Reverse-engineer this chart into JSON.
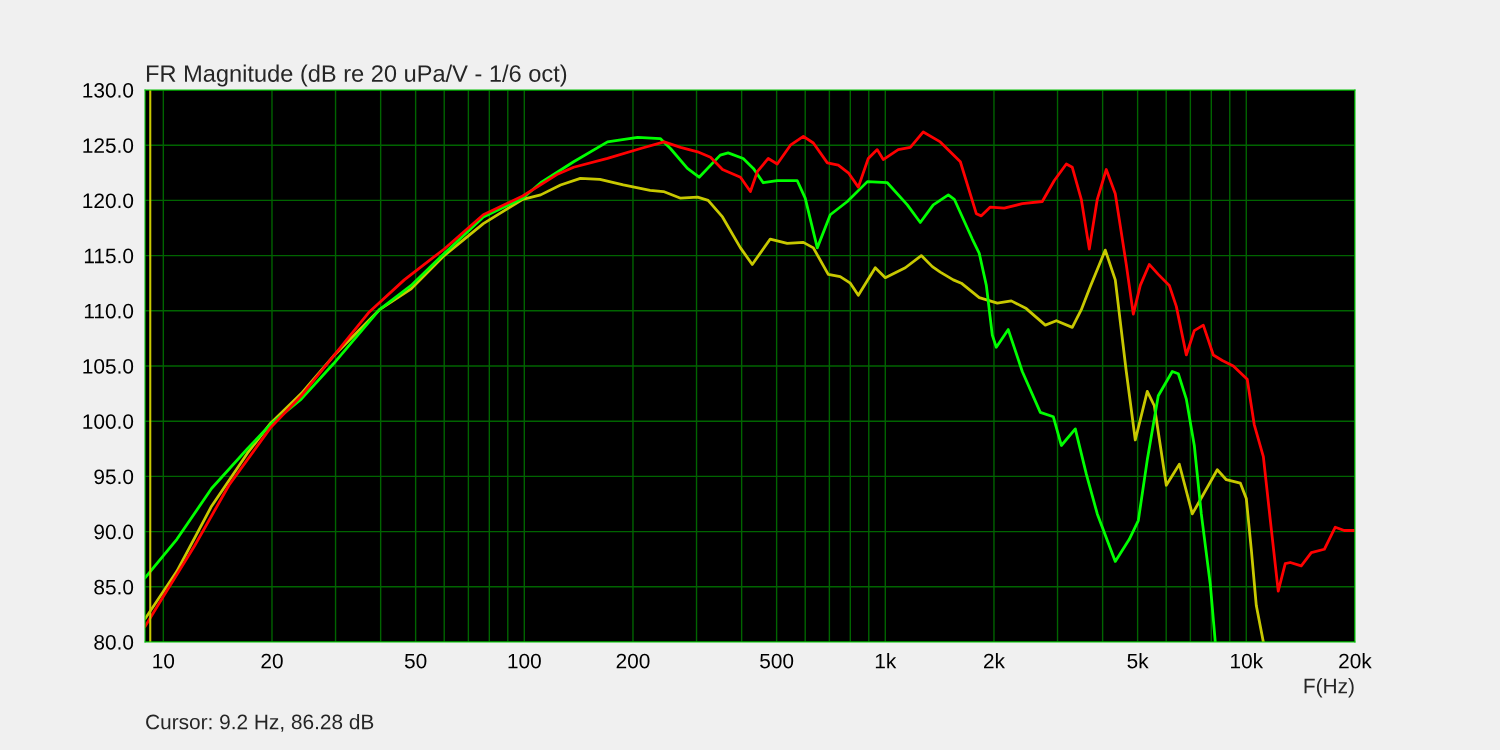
{
  "chart_data": {
    "type": "line",
    "title": "FR Magnitude (dB re 20 uPa/V - 1/6 oct)",
    "xlabel": "F(Hz)",
    "annotations": [
      "Cursor: 9.2 Hz, 86.28 dB"
    ],
    "log": "x",
    "grid": true,
    "marker": "none",
    "line_style": "solid",
    "xlim": [
      8.9,
      20000
    ],
    "ylim": [
      80,
      130
    ],
    "xticks": [
      {
        "value": 10,
        "label": "10"
      },
      {
        "value": 20,
        "label": "20"
      },
      {
        "value": 30,
        "label": null
      },
      {
        "value": 40,
        "label": null
      },
      {
        "value": 50,
        "label": "50"
      },
      {
        "value": 60,
        "label": null
      },
      {
        "value": 70,
        "label": null
      },
      {
        "value": 80,
        "label": null
      },
      {
        "value": 90,
        "label": null
      },
      {
        "value": 100,
        "label": "100"
      },
      {
        "value": 200,
        "label": "200"
      },
      {
        "value": 300,
        "label": null
      },
      {
        "value": 400,
        "label": null
      },
      {
        "value": 500,
        "label": "500"
      },
      {
        "value": 600,
        "label": null
      },
      {
        "value": 700,
        "label": null
      },
      {
        "value": 800,
        "label": null
      },
      {
        "value": 900,
        "label": null
      },
      {
        "value": 1000,
        "label": "1k"
      },
      {
        "value": 2000,
        "label": "2k"
      },
      {
        "value": 3000,
        "label": null
      },
      {
        "value": 4000,
        "label": null
      },
      {
        "value": 5000,
        "label": "5k"
      },
      {
        "value": 6000,
        "label": null
      },
      {
        "value": 7000,
        "label": null
      },
      {
        "value": 8000,
        "label": null
      },
      {
        "value": 9000,
        "label": null
      },
      {
        "value": 10000,
        "label": "10k"
      },
      {
        "value": 20000,
        "label": "20k"
      }
    ],
    "yticks": [
      {
        "value": 80,
        "label": "80.0"
      },
      {
        "value": 85,
        "label": "85.0"
      },
      {
        "value": 90,
        "label": "90.0"
      },
      {
        "value": 95,
        "label": "95.0"
      },
      {
        "value": 100,
        "label": "100.0"
      },
      {
        "value": 105,
        "label": "105.0"
      },
      {
        "value": 110,
        "label": "110.0"
      },
      {
        "value": 115,
        "label": "115.0"
      },
      {
        "value": 120,
        "label": "120.0"
      },
      {
        "value": 125,
        "label": "125.0"
      },
      {
        "value": 130,
        "label": "130.0"
      }
    ],
    "ref_lines": [
      {
        "axis": "x",
        "value": 9.2,
        "color": "#c8c800"
      }
    ],
    "series": [
      {
        "color": "#c8c800",
        "x": [
          8.9,
          10.9,
          13.6,
          17.1,
          19.8,
          24.1,
          29.6,
          39.7,
          48.6,
          60,
          77,
          99,
          111,
          126,
          143,
          162,
          188,
          223,
          243,
          271,
          302,
          323,
          354,
          397,
          428,
          480,
          535,
          593,
          632,
          695,
          750,
          800,
          842,
          938,
          1000,
          1136,
          1258,
          1350,
          1420,
          1543,
          1624,
          1821,
          2043,
          2234,
          2458,
          2775,
          2977,
          3296,
          3491,
          3698,
          4068,
          4336,
          4651,
          4926,
          5318,
          5562,
          6004,
          6524,
          7087,
          8311,
          8803,
          9625,
          10000,
          10325,
          10660,
          11150
        ],
        "values": [
          82.1,
          86.4,
          92.3,
          97.1,
          99.8,
          102.5,
          105.9,
          110.1,
          112.0,
          115.0,
          117.9,
          120.1,
          120.5,
          121.4,
          122.0,
          121.9,
          121.4,
          120.9,
          120.8,
          120.2,
          120.3,
          120.0,
          118.5,
          115.7,
          114.2,
          116.5,
          116.1,
          116.2,
          115.7,
          113.3,
          113.1,
          112.5,
          111.4,
          113.9,
          113.0,
          113.9,
          115.0,
          114.0,
          113.5,
          112.8,
          112.5,
          111.2,
          110.7,
          110.9,
          110.2,
          108.7,
          109.1,
          108.5,
          110.1,
          112.2,
          115.5,
          112.8,
          104.5,
          98.3,
          102.7,
          101.4,
          94.2,
          96.1,
          91.6,
          95.6,
          94.7,
          94.4,
          93.0,
          88.4,
          83.3,
          80.0
        ]
      },
      {
        "color": "#00ff00",
        "x": [
          8.9,
          10.9,
          13.6,
          17.1,
          19.8,
          24.1,
          29.6,
          39.7,
          48.6,
          60,
          77,
          99,
          111,
          137,
          170,
          206,
          238,
          254,
          283,
          305,
          349,
          367,
          404,
          431,
          459,
          502,
          570,
          600,
          648,
          704,
          785,
          892,
          1013,
          1151,
          1250,
          1358,
          1495,
          1553,
          1742,
          1821,
          1905,
          1979,
          2030,
          2191,
          2396,
          2688,
          2921,
          3074,
          3360,
          3605,
          3866,
          4336,
          4741,
          5022,
          5318,
          5704,
          6237,
          6482,
          6822,
          7178,
          7506,
          7950,
          8206
        ],
        "values": [
          85.8,
          89.3,
          93.9,
          97.5,
          99.7,
          102.0,
          105.2,
          110.1,
          112.3,
          115.2,
          118.5,
          120.2,
          121.6,
          123.5,
          125.3,
          125.7,
          125.6,
          124.7,
          122.9,
          122.1,
          124.1,
          124.3,
          123.8,
          122.9,
          121.6,
          121.8,
          121.8,
          120.2,
          115.7,
          118.7,
          119.9,
          121.7,
          121.6,
          119.6,
          118.0,
          119.6,
          120.5,
          120.1,
          116.5,
          115.2,
          112.3,
          107.8,
          106.7,
          108.3,
          104.5,
          100.8,
          100.4,
          97.8,
          99.3,
          95.2,
          91.6,
          87.3,
          89.3,
          91.0,
          96.5,
          102.3,
          104.5,
          104.3,
          102.0,
          97.8,
          91.6,
          85.2,
          80.0
        ]
      },
      {
        "color": "#ff0000",
        "x": [
          8.9,
          9.9,
          12.2,
          15.2,
          19.8,
          24.1,
          29.6,
          37.2,
          46.5,
          60,
          77,
          99,
          124,
          137,
          170,
          210,
          244,
          271,
          302,
          328,
          354,
          397,
          423,
          442,
          474,
          502,
          546,
          593,
          632,
          691,
          741,
          790,
          842,
          897,
          950,
          987,
          1086,
          1173,
          1274,
          1420,
          1614,
          1787,
          1845,
          1954,
          2136,
          2396,
          2722,
          2939,
          3173,
          3296,
          3491,
          3674,
          3866,
          4094,
          4336,
          4651,
          4864,
          5086,
          5386,
          5704,
          6120,
          6400,
          6822,
          7178,
          7602,
          8103,
          8581,
          9204,
          10060,
          10520,
          11150,
          11660,
          12260,
          12820,
          13240,
          14200,
          15140,
          16450,
          17640,
          18680,
          20000
        ],
        "values": [
          81.4,
          83.9,
          88.7,
          94.2,
          99.4,
          102.3,
          105.9,
          109.9,
          112.8,
          115.6,
          118.7,
          120.4,
          122.4,
          123.0,
          123.8,
          124.7,
          125.3,
          124.8,
          124.4,
          123.9,
          122.8,
          122.1,
          120.8,
          122.6,
          123.8,
          123.3,
          125.0,
          125.8,
          125.2,
          123.4,
          123.2,
          122.5,
          121.2,
          123.8,
          124.6,
          123.7,
          124.6,
          124.8,
          126.2,
          125.3,
          123.5,
          118.8,
          118.6,
          119.4,
          119.3,
          119.7,
          119.9,
          121.8,
          123.3,
          123.0,
          120.1,
          115.6,
          120.1,
          122.8,
          120.6,
          114.2,
          109.7,
          112.3,
          114.2,
          113.3,
          112.3,
          110.4,
          106.0,
          108.2,
          108.7,
          106.0,
          105.5,
          105.0,
          103.8,
          99.7,
          96.8,
          91.0,
          84.6,
          87.1,
          87.2,
          86.9,
          88.1,
          88.4,
          90.4,
          90.1,
          90.1
        ]
      }
    ]
  }
}
